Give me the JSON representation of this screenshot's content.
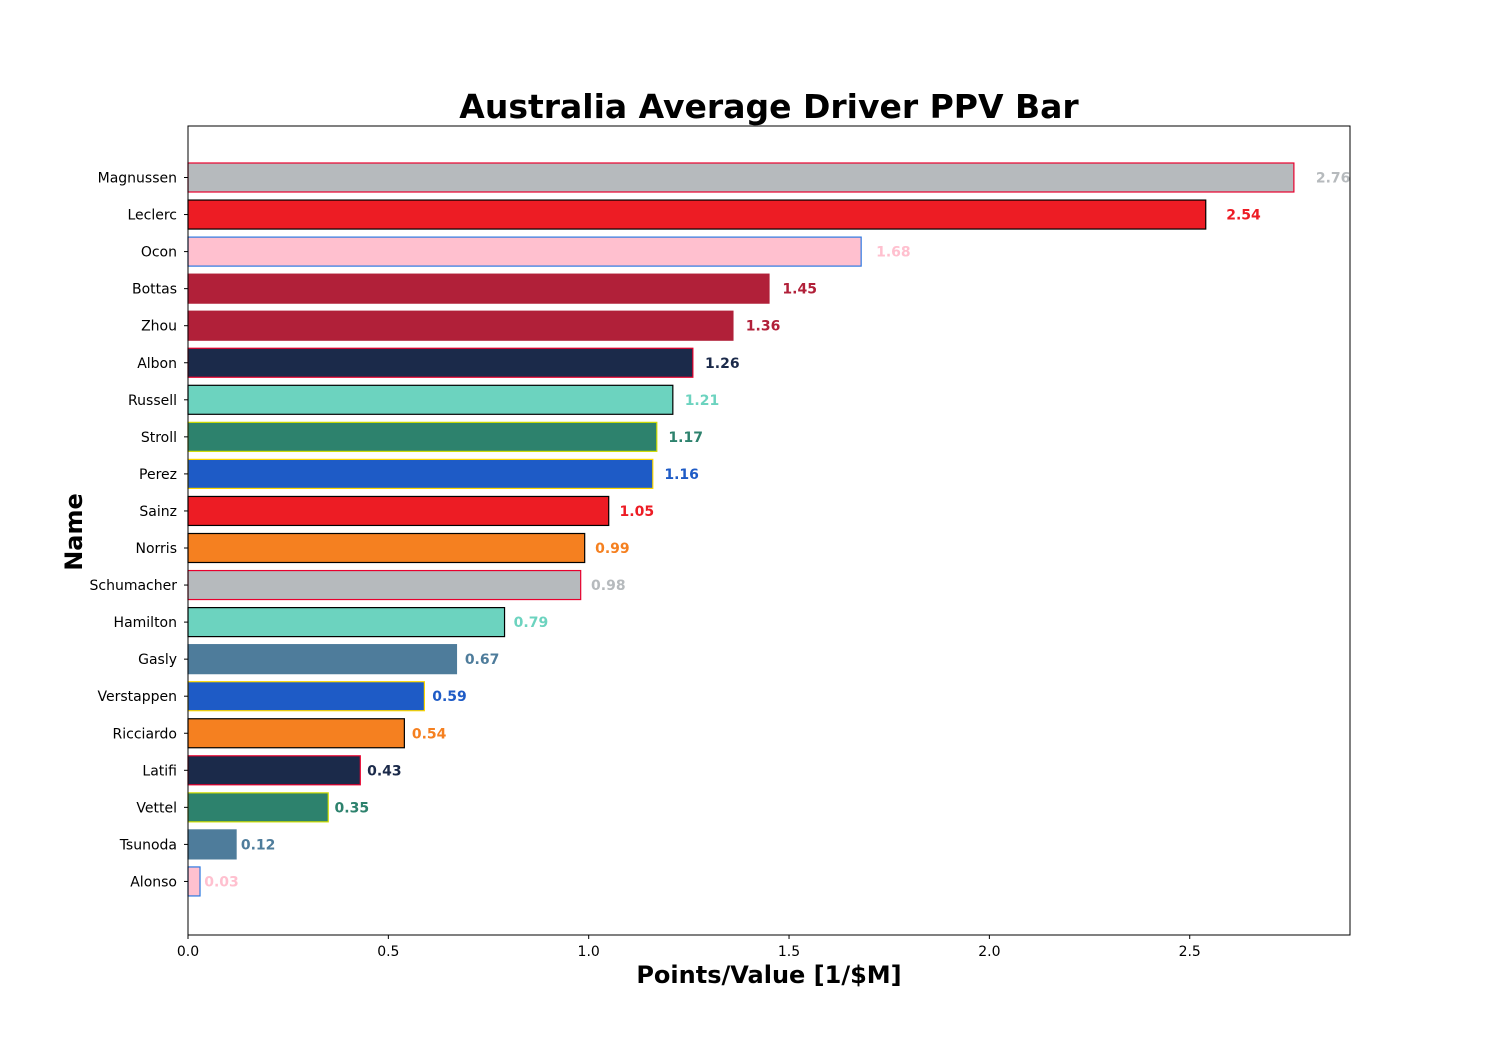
{
  "chart_data": {
    "type": "bar",
    "orientation": "horizontal",
    "title": "Australia Average Driver PPV Bar",
    "xlabel": "Points/Value [1/$M]",
    "ylabel": "Name",
    "xlim": [
      0,
      2.9
    ],
    "xticks": [
      "0.0",
      "0.5",
      "1.0",
      "1.5",
      "2.0",
      "2.5"
    ],
    "xtick_values": [
      0,
      0.5,
      1.0,
      1.5,
      2.0,
      2.5
    ],
    "grid": false,
    "legend": "none",
    "bars": [
      {
        "name": "Magnussen",
        "value": 2.76,
        "label": "2.76",
        "color": "#B6BABD",
        "edge": "#E8002D"
      },
      {
        "name": "Leclerc",
        "value": 2.54,
        "label": "2.54",
        "color": "#ED1C24",
        "edge": "#000000"
      },
      {
        "name": "Ocon",
        "value": 1.68,
        "label": "1.68",
        "color": "#FFC0CF",
        "edge": "#2D78E0"
      },
      {
        "name": "Bottas",
        "value": 1.45,
        "label": "1.45",
        "color": "#B12039",
        "edge": "#B12039"
      },
      {
        "name": "Zhou",
        "value": 1.36,
        "label": "1.36",
        "color": "#B12039",
        "edge": "#B12039"
      },
      {
        "name": "Albon",
        "value": 1.26,
        "label": "1.26",
        "color": "#1B2A4A",
        "edge": "#E8002D"
      },
      {
        "name": "Russell",
        "value": 1.21,
        "label": "1.21",
        "color": "#6CD3BF",
        "edge": "#000000"
      },
      {
        "name": "Stroll",
        "value": 1.17,
        "label": "1.17",
        "color": "#2D826D",
        "edge": "#CEDC00"
      },
      {
        "name": "Perez",
        "value": 1.16,
        "label": "1.16",
        "color": "#1E5BC6",
        "edge": "#FCD700"
      },
      {
        "name": "Sainz",
        "value": 1.05,
        "label": "1.05",
        "color": "#ED1C24",
        "edge": "#000000"
      },
      {
        "name": "Norris",
        "value": 0.99,
        "label": "0.99",
        "color": "#F58020",
        "edge": "#000000"
      },
      {
        "name": "Schumacher",
        "value": 0.98,
        "label": "0.98",
        "color": "#B6BABD",
        "edge": "#E8002D"
      },
      {
        "name": "Hamilton",
        "value": 0.79,
        "label": "0.79",
        "color": "#6CD3BF",
        "edge": "#000000"
      },
      {
        "name": "Gasly",
        "value": 0.67,
        "label": "0.67",
        "color": "#4E7C9B",
        "edge": "#4E7C9B"
      },
      {
        "name": "Verstappen",
        "value": 0.59,
        "label": "0.59",
        "color": "#1E5BC6",
        "edge": "#FCD700"
      },
      {
        "name": "Ricciardo",
        "value": 0.54,
        "label": "0.54",
        "color": "#F58020",
        "edge": "#000000"
      },
      {
        "name": "Latifi",
        "value": 0.43,
        "label": "0.43",
        "color": "#1B2A4A",
        "edge": "#E8002D"
      },
      {
        "name": "Vettel",
        "value": 0.35,
        "label": "0.35",
        "color": "#2D826D",
        "edge": "#CEDC00"
      },
      {
        "name": "Tsunoda",
        "value": 0.12,
        "label": "0.12",
        "color": "#4E7C9B",
        "edge": "#4E7C9B"
      },
      {
        "name": "Alonso",
        "value": 0.03,
        "label": "0.03",
        "color": "#FFC0CF",
        "edge": "#2D78E0"
      }
    ]
  }
}
